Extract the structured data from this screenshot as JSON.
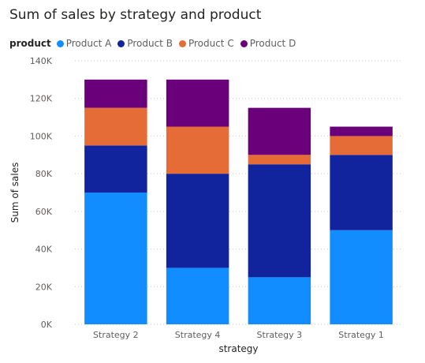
{
  "chart_data": {
    "type": "bar",
    "stacked": true,
    "title": "Sum of sales by strategy and product",
    "legend_title": "product",
    "xlabel": "strategy",
    "ylabel": "Sum of sales",
    "categories": [
      "Strategy 2",
      "Strategy 4",
      "Strategy 3",
      "Strategy 1"
    ],
    "series": [
      {
        "name": "Product A",
        "color": "#118dff",
        "values": [
          70000,
          30000,
          25000,
          50000
        ]
      },
      {
        "name": "Product B",
        "color": "#12239e",
        "values": [
          25000,
          50000,
          60000,
          40000
        ]
      },
      {
        "name": "Product C",
        "color": "#e66c37",
        "values": [
          20000,
          25000,
          5000,
          10000
        ]
      },
      {
        "name": "Product D",
        "color": "#6b007b",
        "values": [
          15000,
          25000,
          25000,
          5000
        ]
      }
    ],
    "ylim": [
      0,
      140000
    ],
    "yticks": [
      0,
      20000,
      40000,
      60000,
      80000,
      100000,
      120000,
      140000
    ],
    "ytick_labels": [
      "0K",
      "20K",
      "40K",
      "60K",
      "80K",
      "100K",
      "120K",
      "140K"
    ],
    "grid": true,
    "legend_position": "top-left"
  }
}
